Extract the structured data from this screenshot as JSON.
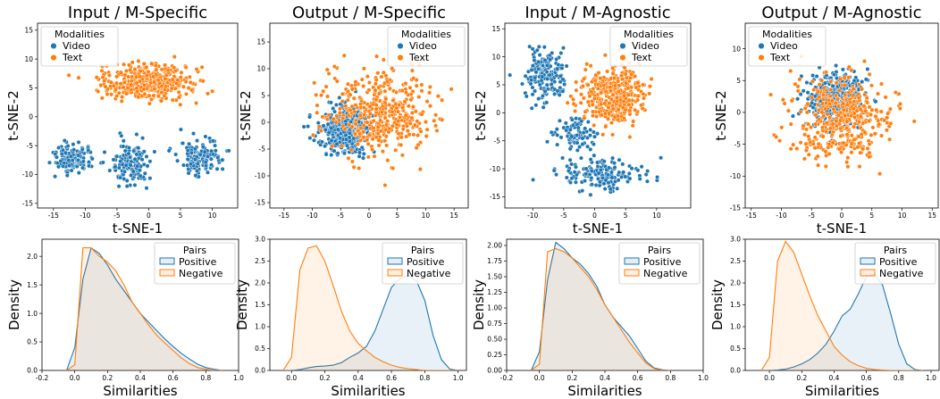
{
  "colors": {
    "video": "#1f77b4",
    "text": "#ff7f0e",
    "positive": "#1f77b4",
    "negative": "#ff7f0e"
  },
  "chart_data": [
    {
      "type": "scatter",
      "title": "Input / M-Specific",
      "xlabel": "t-SNE-1",
      "ylabel": "t-SNE-2",
      "xlim": [
        -17.5,
        14
      ],
      "ylim": [
        -15.8,
        16.2
      ],
      "xticks": [
        -15,
        -10,
        -5,
        0,
        5,
        10
      ],
      "yticks": [
        -15,
        -10,
        -5,
        0,
        5,
        10,
        15
      ],
      "legend": {
        "title": "Modalities",
        "position": "top-left"
      },
      "series": [
        {
          "name": "Video",
          "color": "#1f77b4",
          "n": 420,
          "seed": 11,
          "clusters": [
            {
              "cx": -12,
              "cy": -7,
              "sx": 3.0,
              "sy": 2.2,
              "w": 0.35
            },
            {
              "cx": -3,
              "cy": -8,
              "sx": 3.0,
              "sy": 3.2,
              "w": 0.35
            },
            {
              "cx": 8,
              "cy": -7,
              "sx": 3.0,
              "sy": 3.0,
              "w": 0.3
            }
          ]
        },
        {
          "name": "Text",
          "color": "#ff7f0e",
          "n": 420,
          "seed": 12,
          "clusters": [
            {
              "cx": 0,
              "cy": 6,
              "sx": 6.5,
              "sy": 2.8,
              "w": 1
            }
          ]
        }
      ]
    },
    {
      "type": "scatter",
      "title": "Output / M-Specific",
      "xlabel": "",
      "ylabel": "t-SNE-2",
      "xlim": [
        -17.5,
        17.5
      ],
      "ylim": [
        -16,
        18.5
      ],
      "xticks": [
        -15,
        -10,
        -5,
        0,
        5,
        10,
        15
      ],
      "yticks": [
        -15,
        -10,
        -5,
        0,
        5,
        10,
        15
      ],
      "legend": {
        "title": "Modalities",
        "position": "top-right"
      },
      "series": [
        {
          "name": "Video",
          "color": "#1f77b4",
          "n": 420,
          "seed": 21,
          "clusters": [
            {
              "cx": -4,
              "cy": -1.5,
              "sx": 4.0,
              "sy": 4.0,
              "w": 1
            }
          ]
        },
        {
          "name": "Text",
          "color": "#ff7f0e",
          "n": 420,
          "seed": 22,
          "clusters": [
            {
              "cx": 2,
              "cy": 2,
              "sx": 8.0,
              "sy": 7.0,
              "w": 1
            }
          ]
        }
      ]
    },
    {
      "type": "scatter",
      "title": "Input / M-Agnostic",
      "xlabel": "t-SNE-1",
      "ylabel": "t-SNE-2",
      "xlim": [
        -14.5,
        15.5
      ],
      "ylim": [
        -17,
        16
      ],
      "xticks": [
        -10,
        -5,
        0,
        5,
        10
      ],
      "yticks": [
        -15,
        -10,
        -5,
        0,
        5,
        10,
        15
      ],
      "legend": {
        "title": "Modalities",
        "position": "top-right"
      },
      "series": [
        {
          "name": "Video",
          "color": "#1f77b4",
          "n": 420,
          "seed": 31,
          "clusters": [
            {
              "cx": -8,
              "cy": 7,
              "sx": 3.0,
              "sy": 4.0,
              "w": 0.4
            },
            {
              "cx": 1,
              "cy": -11,
              "sx": 6.0,
              "sy": 2.5,
              "w": 0.4
            },
            {
              "cx": -3,
              "cy": -4,
              "sx": 3.0,
              "sy": 2.5,
              "w": 0.2
            }
          ]
        },
        {
          "name": "Text",
          "color": "#ff7f0e",
          "n": 420,
          "seed": 32,
          "clusters": [
            {
              "cx": 3,
              "cy": 3,
              "sx": 4.5,
              "sy": 4.5,
              "w": 1
            }
          ]
        }
      ]
    },
    {
      "type": "scatter",
      "title": "Output / M-Agnostic",
      "xlabel": "t-SNE-1",
      "ylabel": "t-SNE-2",
      "xlim": [
        -16,
        16
      ],
      "ylim": [
        -15,
        14
      ],
      "xticks": [
        -15,
        -10,
        -5,
        0,
        5,
        10,
        15
      ],
      "yticks": [
        -15,
        -10,
        -5,
        0,
        5,
        10
      ],
      "legend": {
        "title": "Modalities",
        "position": "top-left"
      },
      "series": [
        {
          "name": "Video",
          "color": "#1f77b4",
          "n": 420,
          "seed": 41,
          "clusters": [
            {
              "cx": -1,
              "cy": 2,
              "sx": 4.5,
              "sy": 4.0,
              "w": 1
            }
          ]
        },
        {
          "name": "Text",
          "color": "#ff7f0e",
          "n": 420,
          "seed": 42,
          "clusters": [
            {
              "cx": 0,
              "cy": -1,
              "sx": 7.5,
              "sy": 6.0,
              "w": 1
            }
          ]
        }
      ]
    },
    {
      "type": "area",
      "title": "",
      "xlabel": "Similarities",
      "ylabel": "Density",
      "xlim": [
        -0.2,
        1.0
      ],
      "ylim": [
        0,
        2.3
      ],
      "xticks": [
        -0.2,
        0.0,
        0.2,
        0.4,
        0.6,
        0.8,
        1.0
      ],
      "yticks": [
        0.0,
        0.5,
        1.0,
        1.5,
        2.0
      ],
      "legend": {
        "title": "Pairs",
        "position": "top-right"
      },
      "x": [
        -0.05,
        0.0,
        0.05,
        0.1,
        0.15,
        0.2,
        0.25,
        0.3,
        0.35,
        0.4,
        0.45,
        0.5,
        0.55,
        0.6,
        0.65,
        0.7,
        0.75,
        0.8,
        0.85,
        0.9
      ],
      "series": [
        {
          "name": "Positive",
          "color": "#1f77b4",
          "values": [
            0.0,
            0.4,
            1.6,
            2.15,
            2.05,
            1.85,
            1.6,
            1.4,
            1.2,
            1.0,
            0.85,
            0.7,
            0.55,
            0.42,
            0.3,
            0.2,
            0.11,
            0.05,
            0.02,
            0.0
          ]
        },
        {
          "name": "Negative",
          "color": "#ff7f0e",
          "values": [
            0.0,
            0.1,
            2.15,
            2.15,
            2.0,
            1.9,
            1.75,
            1.5,
            1.2,
            1.0,
            0.8,
            0.62,
            0.48,
            0.35,
            0.22,
            0.12,
            0.05,
            0.02,
            0.0,
            0.0
          ]
        }
      ]
    },
    {
      "type": "area",
      "title": "",
      "xlabel": "Similarities",
      "ylabel": "Density",
      "xlim": [
        -0.13,
        1.05
      ],
      "ylim": [
        0,
        3.0
      ],
      "xticks": [
        0.0,
        0.2,
        0.4,
        0.6,
        0.8,
        1.0
      ],
      "yticks": [
        0.0,
        0.5,
        1.0,
        1.5,
        2.0,
        2.5,
        3.0
      ],
      "legend": {
        "title": "Pairs",
        "position": "top-right"
      },
      "x": [
        -0.05,
        0.0,
        0.05,
        0.1,
        0.15,
        0.2,
        0.25,
        0.3,
        0.35,
        0.4,
        0.45,
        0.5,
        0.55,
        0.6,
        0.65,
        0.7,
        0.75,
        0.8,
        0.85,
        0.9,
        0.95,
        1.0
      ],
      "series": [
        {
          "name": "Positive",
          "color": "#1f77b4",
          "values": [
            0.0,
            0.0,
            0.02,
            0.06,
            0.09,
            0.1,
            0.12,
            0.18,
            0.3,
            0.4,
            0.55,
            0.9,
            1.4,
            1.9,
            2.1,
            2.18,
            2.05,
            1.6,
            0.8,
            0.25,
            0.03,
            0.0
          ]
        },
        {
          "name": "Negative",
          "color": "#ff7f0e",
          "values": [
            0.0,
            0.3,
            2.3,
            2.8,
            2.85,
            2.5,
            1.95,
            1.35,
            0.9,
            0.62,
            0.45,
            0.3,
            0.2,
            0.12,
            0.07,
            0.04,
            0.02,
            0.0,
            0.0,
            0.0,
            0.0,
            0.0
          ]
        }
      ]
    },
    {
      "type": "area",
      "title": "",
      "xlabel": "Similarities",
      "ylabel": "Density",
      "xlim": [
        -0.2,
        1.0
      ],
      "ylim": [
        0,
        2.1
      ],
      "xticks": [
        -0.2,
        0.0,
        0.2,
        0.4,
        0.6,
        0.8,
        1.0
      ],
      "yticks": [
        0.0,
        0.25,
        0.5,
        0.75,
        1.0,
        1.25,
        1.5,
        1.75,
        2.0
      ],
      "legend": {
        "title": "Pairs",
        "position": "top-right"
      },
      "x": [
        -0.05,
        0.0,
        0.05,
        0.1,
        0.15,
        0.2,
        0.25,
        0.3,
        0.35,
        0.4,
        0.45,
        0.5,
        0.55,
        0.6,
        0.65,
        0.7,
        0.75,
        0.8
      ],
      "series": [
        {
          "name": "Positive",
          "color": "#1f77b4",
          "values": [
            0.0,
            0.3,
            1.45,
            2.05,
            1.95,
            1.8,
            1.7,
            1.55,
            1.35,
            1.05,
            0.85,
            0.7,
            0.55,
            0.35,
            0.15,
            0.04,
            0.01,
            0.0
          ]
        },
        {
          "name": "Negative",
          "color": "#ff7f0e",
          "values": [
            0.0,
            0.1,
            1.9,
            1.95,
            1.9,
            1.8,
            1.65,
            1.5,
            1.3,
            1.05,
            0.85,
            0.65,
            0.45,
            0.28,
            0.12,
            0.03,
            0.0,
            0.0
          ]
        }
      ]
    },
    {
      "type": "area",
      "title": "",
      "xlabel": "Similarities",
      "ylabel": "Density",
      "xlim": [
        -0.15,
        1.05
      ],
      "ylim": [
        0,
        3.0
      ],
      "xticks": [
        0.0,
        0.2,
        0.4,
        0.6,
        0.8,
        1.0
      ],
      "yticks": [
        0.0,
        0.5,
        1.0,
        1.5,
        2.0,
        2.5,
        3.0
      ],
      "legend": {
        "title": "Pairs",
        "position": "top-right"
      },
      "x": [
        -0.05,
        0.0,
        0.05,
        0.1,
        0.15,
        0.2,
        0.25,
        0.3,
        0.35,
        0.4,
        0.45,
        0.5,
        0.55,
        0.6,
        0.65,
        0.7,
        0.75,
        0.8,
        0.85,
        0.9,
        0.95
      ],
      "series": [
        {
          "name": "Positive",
          "color": "#1f77b4",
          "values": [
            0.0,
            0.0,
            0.01,
            0.03,
            0.08,
            0.15,
            0.25,
            0.4,
            0.6,
            0.9,
            1.25,
            1.4,
            1.75,
            2.15,
            2.2,
            1.95,
            1.3,
            0.6,
            0.15,
            0.02,
            0.0
          ]
        },
        {
          "name": "Negative",
          "color": "#ff7f0e",
          "values": [
            0.0,
            0.3,
            2.5,
            2.95,
            2.7,
            2.2,
            1.7,
            1.25,
            0.9,
            0.55,
            0.35,
            0.2,
            0.11,
            0.05,
            0.02,
            0.01,
            0.0,
            0.0,
            0.0,
            0.0,
            0.0
          ]
        }
      ]
    }
  ]
}
